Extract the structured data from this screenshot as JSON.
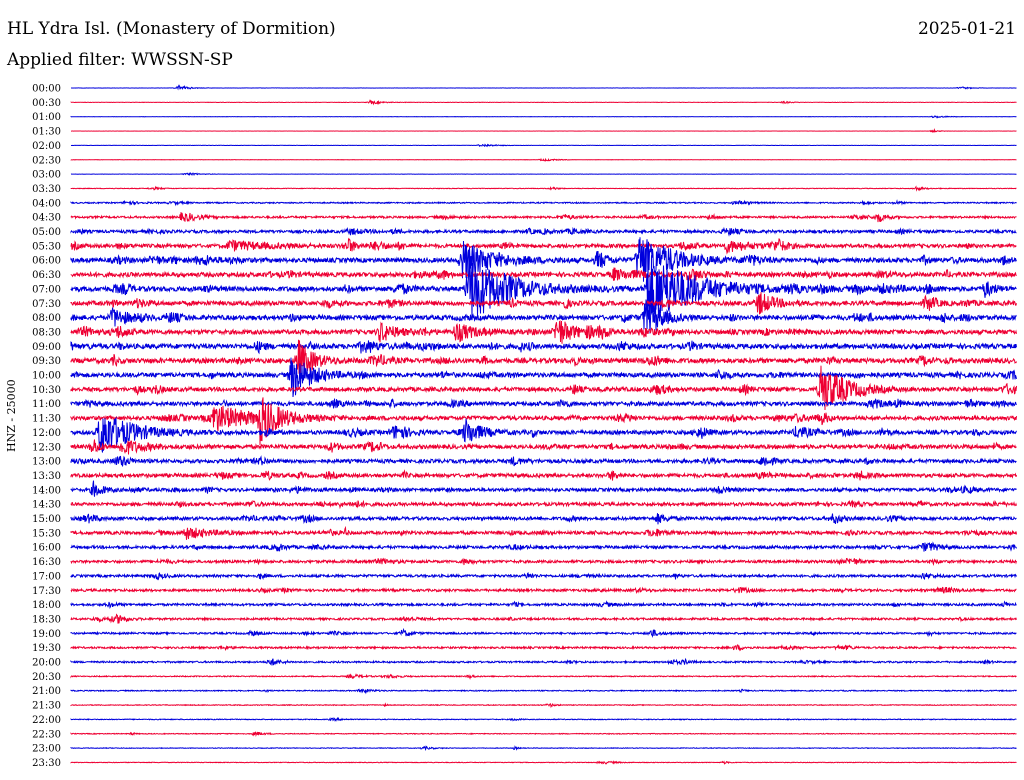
{
  "header": {
    "station": "HL Ydra Isl. (Monastery of Dormition)",
    "date": "2025-01-21",
    "filter": "Applied filter: WWSSN-SP"
  },
  "chart_data": {
    "type": "line",
    "title": "HL Ydra Isl. (Monastery of Dormition)",
    "subtitle": "Applied filter: WWSSN-SP",
    "ylabel": "HNZ - 25000",
    "xlabel": "",
    "grid": false,
    "legend": "none",
    "colors": [
      "#0000dd",
      "#ee0033"
    ],
    "x_range_minutes": [
      0,
      30
    ],
    "ticks": [
      "00:00",
      "00:30",
      "01:00",
      "01:30",
      "02:00",
      "02:30",
      "03:00",
      "03:30",
      "04:00",
      "04:30",
      "05:00",
      "05:30",
      "06:00",
      "06:30",
      "07:00",
      "07:30",
      "08:00",
      "08:30",
      "09:00",
      "09:30",
      "10:00",
      "10:30",
      "11:00",
      "11:30",
      "12:00",
      "12:30",
      "13:00",
      "13:30",
      "14:00",
      "14:30",
      "15:00",
      "15:30",
      "16:00",
      "16:30",
      "17:00",
      "17:30",
      "18:00",
      "18:30",
      "19:00",
      "19:30",
      "20:00",
      "20:30",
      "21:00",
      "21:30",
      "22:00",
      "22:30",
      "23:00",
      "23:30"
    ],
    "noise_level": [
      0.1,
      0.2,
      0.15,
      0.1,
      0.15,
      0.15,
      0.1,
      0.3,
      0.6,
      1.0,
      1.4,
      1.8,
      2.2,
      2.2,
      2.4,
      2.2,
      2.3,
      2.2,
      2.4,
      2.4,
      2.2,
      2.0,
      2.0,
      2.0,
      2.0,
      2.0,
      1.8,
      1.8,
      1.6,
      1.6,
      1.6,
      1.6,
      1.4,
      1.3,
      1.2,
      1.2,
      1.1,
      1.0,
      0.9,
      0.9,
      0.8,
      0.5,
      0.5,
      0.4,
      0.4,
      0.4,
      0.3,
      0.3
    ],
    "events": [
      {
        "row": 0,
        "minute": 3.4,
        "amp": 3,
        "dur": 0.6
      },
      {
        "row": 1,
        "minute": 9.5,
        "amp": 2,
        "dur": 0.6
      },
      {
        "row": 7,
        "minute": 26.8,
        "amp": 2,
        "dur": 0.5
      },
      {
        "row": 8,
        "minute": 1.7,
        "amp": 2,
        "dur": 0.8
      },
      {
        "row": 9,
        "minute": 3.5,
        "amp": 4,
        "dur": 0.8
      },
      {
        "row": 9,
        "minute": 25.6,
        "amp": 5,
        "dur": 0.5
      },
      {
        "row": 10,
        "minute": 8.8,
        "amp": 3,
        "dur": 1
      },
      {
        "row": 11,
        "minute": 5.0,
        "amp": 5,
        "dur": 2.5
      },
      {
        "row": 11,
        "minute": 20.8,
        "amp": 6,
        "dur": 1.5
      },
      {
        "row": 12,
        "minute": 12.4,
        "amp": 20,
        "dur": 2
      },
      {
        "row": 12,
        "minute": 16.7,
        "amp": 10,
        "dur": 0.6
      },
      {
        "row": 12,
        "minute": 18.0,
        "amp": 28,
        "dur": 2
      },
      {
        "row": 13,
        "minute": 17.2,
        "amp": 6,
        "dur": 1
      },
      {
        "row": 14,
        "minute": 12.6,
        "amp": 34,
        "dur": 2.5
      },
      {
        "row": 14,
        "minute": 18.3,
        "amp": 36,
        "dur": 3
      },
      {
        "row": 14,
        "minute": 29.0,
        "amp": 8,
        "dur": 0.6
      },
      {
        "row": 15,
        "minute": 21.8,
        "amp": 12,
        "dur": 1
      },
      {
        "row": 16,
        "minute": 1.3,
        "amp": 10,
        "dur": 1
      },
      {
        "row": 16,
        "minute": 18.2,
        "amp": 18,
        "dur": 1
      },
      {
        "row": 17,
        "minute": 9.8,
        "amp": 10,
        "dur": 1
      },
      {
        "row": 17,
        "minute": 12.2,
        "amp": 10,
        "dur": 1.2
      },
      {
        "row": 17,
        "minute": 15.4,
        "amp": 16,
        "dur": 1
      },
      {
        "row": 18,
        "minute": 9.2,
        "amp": 5,
        "dur": 1
      },
      {
        "row": 19,
        "minute": 7.2,
        "amp": 20,
        "dur": 1
      },
      {
        "row": 20,
        "minute": 7.0,
        "amp": 22,
        "dur": 1.3
      },
      {
        "row": 21,
        "minute": 23.8,
        "amp": 26,
        "dur": 1.5
      },
      {
        "row": 23,
        "minute": 4.5,
        "amp": 14,
        "dur": 2.5
      },
      {
        "row": 23,
        "minute": 6.0,
        "amp": 22,
        "dur": 1.2
      },
      {
        "row": 24,
        "minute": 0.9,
        "amp": 24,
        "dur": 2
      },
      {
        "row": 24,
        "minute": 12.5,
        "amp": 14,
        "dur": 1
      },
      {
        "row": 24,
        "minute": 23.0,
        "amp": 6,
        "dur": 1
      },
      {
        "row": 25,
        "minute": 1.6,
        "amp": 8,
        "dur": 1.4
      },
      {
        "row": 26,
        "minute": 14.0,
        "amp": 4,
        "dur": 0.6
      },
      {
        "row": 28,
        "minute": 0.7,
        "amp": 8,
        "dur": 0.6
      },
      {
        "row": 28,
        "minute": 20.5,
        "amp": 4,
        "dur": 0.6
      },
      {
        "row": 30,
        "minute": 18.6,
        "amp": 5,
        "dur": 0.6
      },
      {
        "row": 31,
        "minute": 3.6,
        "amp": 6,
        "dur": 1.5
      },
      {
        "row": 32,
        "minute": 6.5,
        "amp": 4,
        "dur": 0.5
      },
      {
        "row": 38,
        "minute": 10.5,
        "amp": 4,
        "dur": 0.5
      },
      {
        "row": 38,
        "minute": 18.4,
        "amp": 4,
        "dur": 0.5
      },
      {
        "row": 40,
        "minute": 6.3,
        "amp": 4,
        "dur": 0.6
      }
    ]
  }
}
